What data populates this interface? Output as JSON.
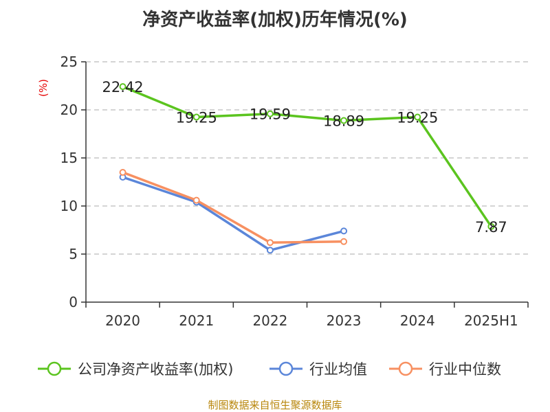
{
  "chart_data": {
    "type": "line",
    "title": "净资产收益率(加权)历年情况(%)",
    "ylabel": "(%)",
    "categories": [
      "2020",
      "2021",
      "2022",
      "2023",
      "2024",
      "2025H1"
    ],
    "ylim": [
      0,
      25
    ],
    "yticks": [
      0,
      5,
      10,
      15,
      20,
      25
    ],
    "grid": true,
    "legend_position": "bottom",
    "series": [
      {
        "name": "公司净资产收益率(加权)",
        "color": "#5bc41f",
        "values": [
          22.42,
          19.25,
          19.59,
          18.89,
          19.25,
          7.87
        ],
        "labels": [
          "22.42",
          "19.25",
          "19.59",
          "18.89",
          "19.25",
          "7.87"
        ]
      },
      {
        "name": "行业均值",
        "color": "#5b86d9",
        "values": [
          13.0,
          10.4,
          5.4,
          7.4,
          null,
          null
        ]
      },
      {
        "name": "行业中位数",
        "color": "#f79061",
        "values": [
          13.5,
          10.6,
          6.2,
          6.3,
          null,
          null
        ]
      }
    ]
  },
  "footer": {
    "source": "制图数据来自恒生聚源数据库"
  }
}
